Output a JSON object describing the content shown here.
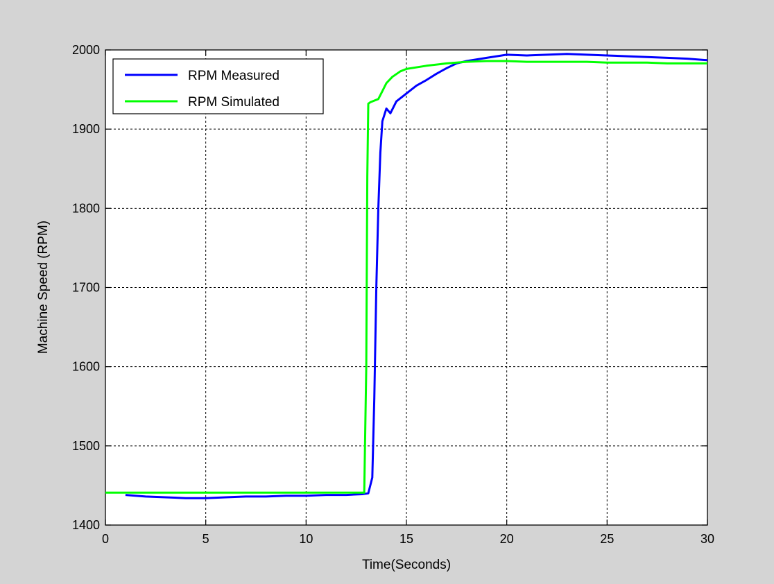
{
  "chart_data": {
    "type": "line",
    "title": "",
    "xlabel": "Time(Seconds)",
    "ylabel": "Machine Speed (RPM)",
    "xlim": [
      0,
      30
    ],
    "ylim": [
      1400,
      2000
    ],
    "xticks": [
      0,
      5,
      10,
      15,
      20,
      25,
      30
    ],
    "yticks": [
      1400,
      1500,
      1600,
      1700,
      1800,
      1900,
      2000
    ],
    "xtick_labels": [
      "0",
      "5",
      "10",
      "15",
      "20",
      "25",
      "30"
    ],
    "ytick_labels": [
      "1400",
      "1500",
      "1600",
      "1700",
      "1800",
      "1900",
      "2000"
    ],
    "grid": true,
    "legend_position": "top-left",
    "series": [
      {
        "name": "RPM Measured",
        "color": "#0000ff",
        "x": [
          1,
          2,
          3,
          4,
          5,
          6,
          7,
          8,
          9,
          10,
          11,
          12,
          12.8,
          13.1,
          13.3,
          13.4,
          13.5,
          13.6,
          13.7,
          13.8,
          14.0,
          14.2,
          14.5,
          15.0,
          15.5,
          16.0,
          16.5,
          17.0,
          17.5,
          18.0,
          19.0,
          20.0,
          21.0,
          22.0,
          23.0,
          24.0,
          25.0,
          26.0,
          27.0,
          28.0,
          29.0,
          30.0
        ],
        "y": [
          1438,
          1436,
          1435,
          1434,
          1434,
          1435,
          1436,
          1436,
          1437,
          1437,
          1438,
          1438,
          1439,
          1440,
          1460,
          1560,
          1700,
          1800,
          1870,
          1910,
          1926,
          1920,
          1935,
          1945,
          1955,
          1962,
          1970,
          1977,
          1983,
          1986,
          1990,
          1994,
          1993,
          1994,
          1995,
          1994,
          1993,
          1992,
          1991,
          1990,
          1989,
          1987
        ]
      },
      {
        "name": "RPM Simulated",
        "color": "#00ff00",
        "x": [
          0,
          2,
          4,
          6,
          8,
          10,
          12,
          12.9,
          13.0,
          13.05,
          13.1,
          13.2,
          13.6,
          13.8,
          14.0,
          14.3,
          14.7,
          15.0,
          16.0,
          17.0,
          18.0,
          19.0,
          20.0,
          21.0,
          22.0,
          23.0,
          24.0,
          25.0,
          26.0,
          27.0,
          28.0,
          29.0,
          30.0
        ],
        "y": [
          1441,
          1441,
          1441,
          1441,
          1441,
          1441,
          1441,
          1441,
          1600,
          1840,
          1932,
          1934,
          1938,
          1948,
          1958,
          1966,
          1973,
          1976,
          1980,
          1983,
          1985,
          1986,
          1986,
          1985,
          1985,
          1985,
          1985,
          1984,
          1984,
          1984,
          1983,
          1983,
          1983
        ]
      }
    ]
  }
}
